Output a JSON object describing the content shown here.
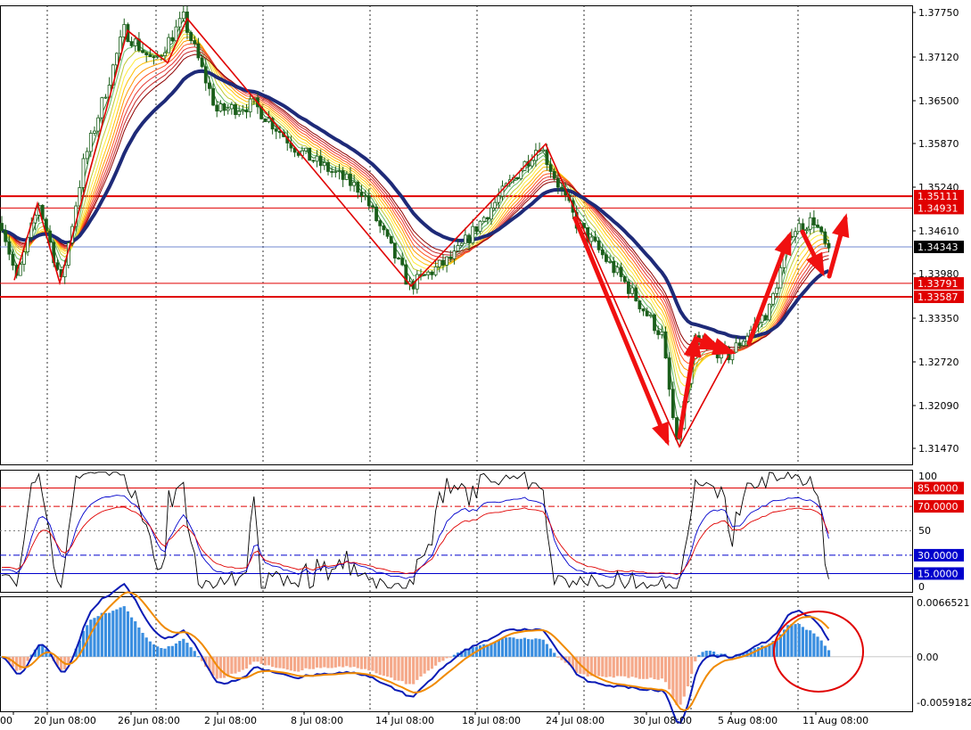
{
  "chart_data": [
    {
      "type": "candlestick",
      "panel": "price",
      "ylim": [
        1.3105,
        1.38
      ],
      "y_ticks": [
        "1.37750",
        "1.37120",
        "1.36500",
        "1.35870",
        "1.35240",
        "1.34610",
        "1.33980",
        "1.33350",
        "1.32720",
        "1.32090",
        "1.31470"
      ],
      "x_labels": [
        "00",
        "20 Jun 08:00",
        "26 Jun 08:00",
        "2 Jul 08:00",
        "8 Jul 08:00",
        "14 Jul 08:00",
        "18 Jul 08:00",
        "24 Jul 08:00",
        "30 Jul 08:00",
        "5 Aug 08:00",
        "11 Aug 08:00"
      ],
      "horizontal_levels": [
        {
          "value": 1.35111,
          "label": "1.35111",
          "color": "#e00000"
        },
        {
          "value": 1.34931,
          "label": "1.34931",
          "color": "#e00000"
        },
        {
          "value": 1.34343,
          "label": "1.34343",
          "color": "#4060c0",
          "current": true
        },
        {
          "value": 1.33791,
          "label": "1.33791",
          "color": "#e00000"
        },
        {
          "value": 1.33587,
          "label": "1.33587",
          "color": "#e00000"
        }
      ],
      "zigzag": [
        [
          0,
          1.3384
        ],
        [
          1,
          1.35
        ],
        [
          2,
          1.338
        ],
        [
          3,
          1.3762
        ],
        [
          4,
          1.3713
        ],
        [
          5,
          1.378
        ],
        [
          6,
          1.3375
        ],
        [
          7,
          1.359
        ],
        [
          8,
          1.3132
        ],
        [
          9,
          1.327
        ]
      ],
      "moving_average_color": "#1e2a78",
      "ribbon_colors": [
        "#2e7d32",
        "#66bb6a",
        "#c0ca33",
        "#ffeb3b",
        "#ffc107",
        "#ff9800",
        "#ff5722",
        "#e53935",
        "#c62828",
        "#8e0000"
      ]
    },
    {
      "type": "line",
      "panel": "oscillator",
      "ylim": [
        0,
        100
      ],
      "y_ticks": [
        "100",
        "50",
        "0"
      ],
      "levels": [
        {
          "value": 85,
          "label": "85.0000",
          "color": "#e00000",
          "style": "solid"
        },
        {
          "value": 70,
          "label": "70.0000",
          "color": "#e00000",
          "style": "dashdot"
        },
        {
          "value": 50,
          "label": "",
          "color": "#808080",
          "style": "dotted"
        },
        {
          "value": 30,
          "label": "30.0000",
          "color": "#0000cc",
          "style": "dashdot"
        },
        {
          "value": 15,
          "label": "15.0000",
          "color": "#0000cc",
          "style": "solid"
        }
      ],
      "series_colors": [
        "#000000",
        "#0000cc",
        "#e00000"
      ]
    },
    {
      "type": "bar",
      "panel": "macd",
      "ylim": [
        -0.0059182,
        0.0066521
      ],
      "y_ticks": [
        "0.0066521",
        "0.00",
        "-0.0059182"
      ],
      "positive_color": "#3a8ee0",
      "negative_color": "#f5a98a",
      "line_colors": [
        "#0a1bb5",
        "#f08a00"
      ]
    }
  ]
}
